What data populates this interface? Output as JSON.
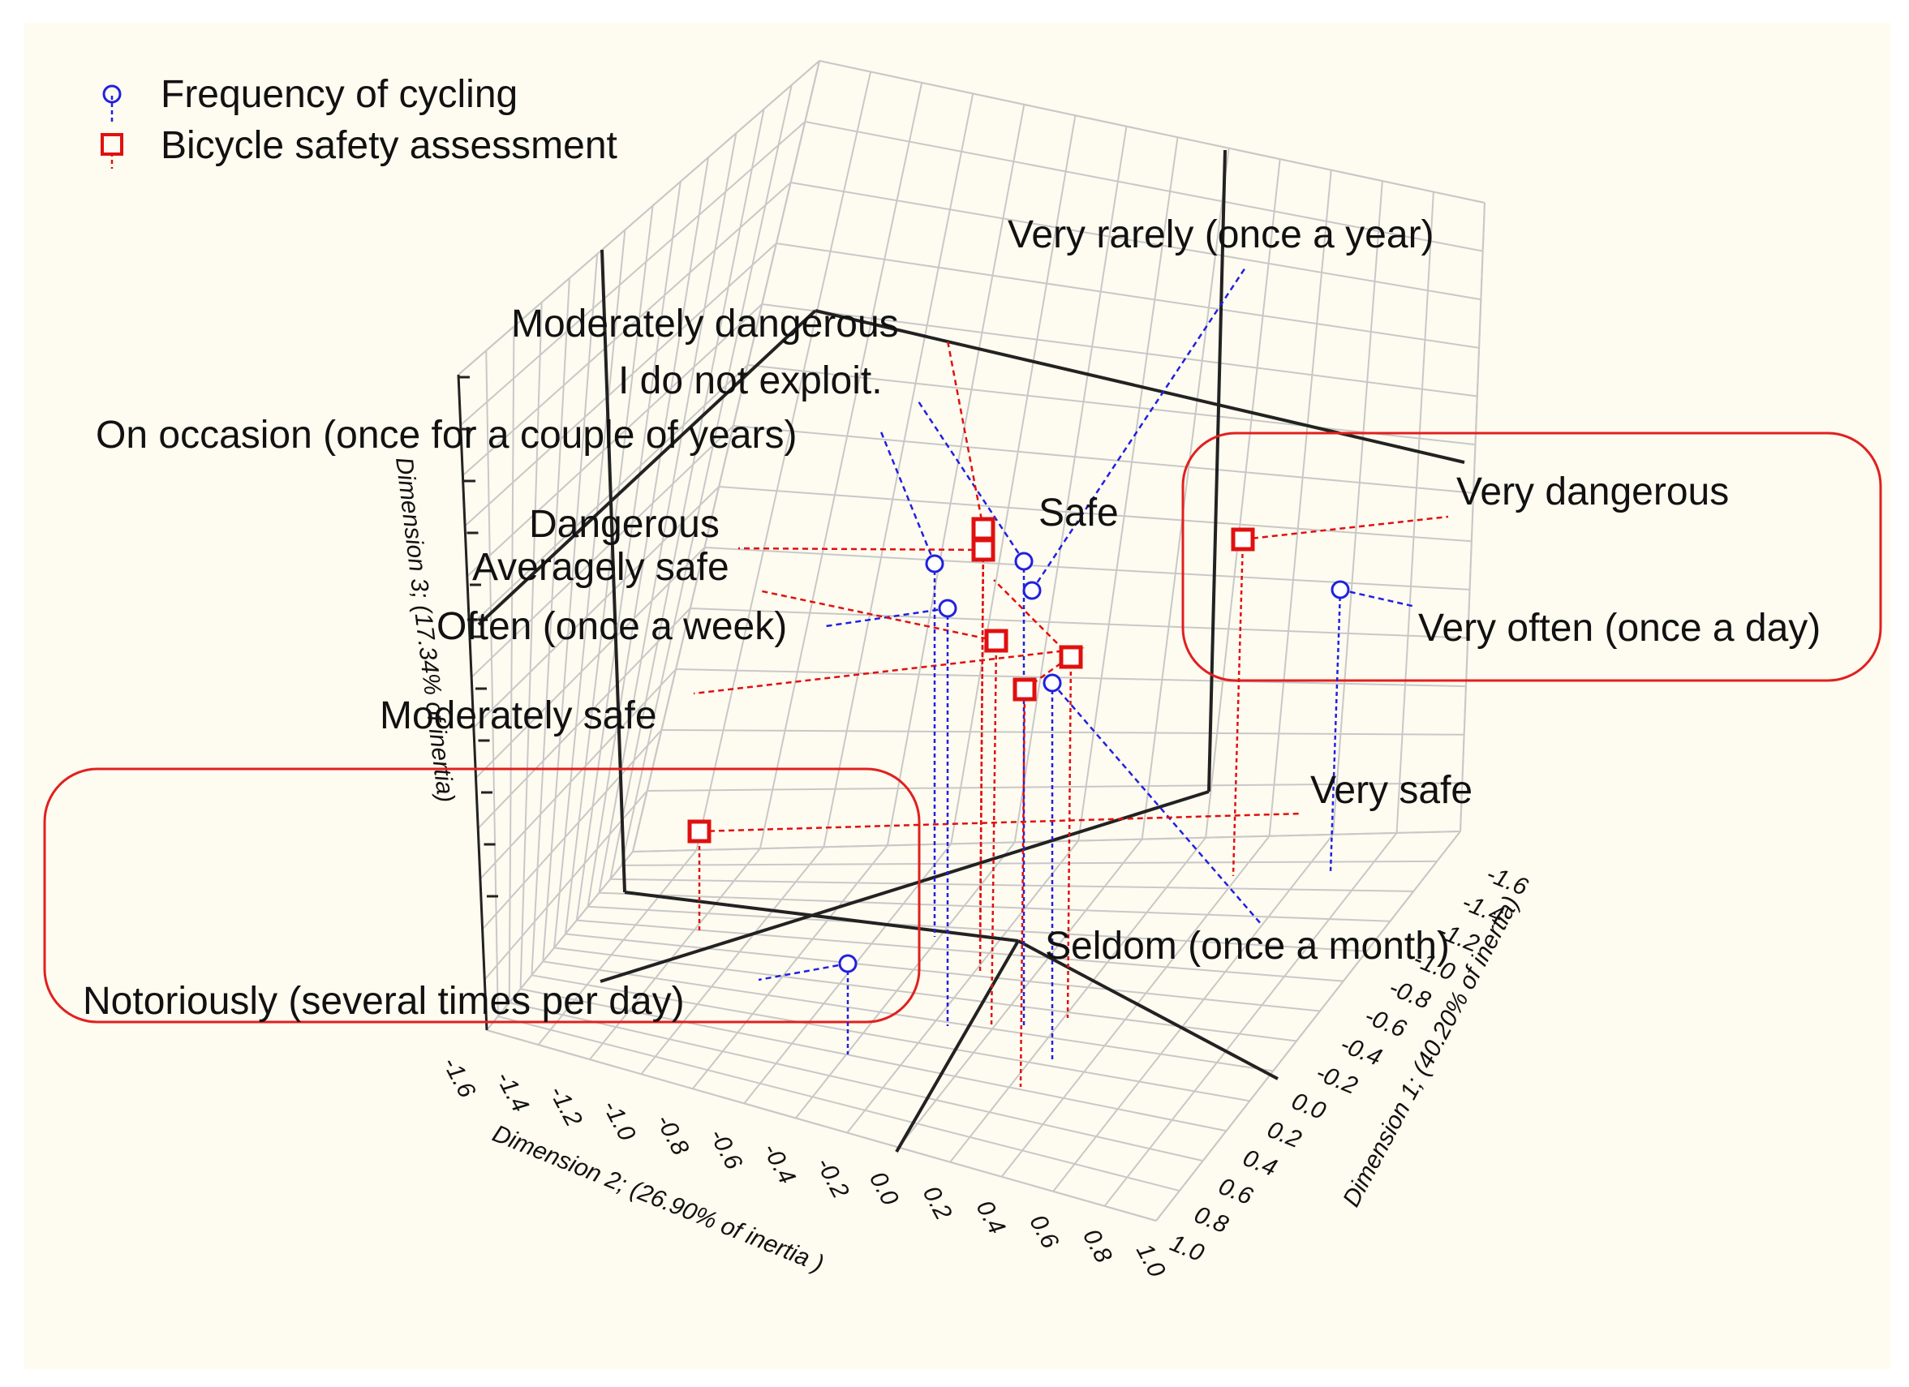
{
  "chart_data": {
    "type": "scatter",
    "title": "",
    "legend": {
      "placement": "top-left",
      "entries": [
        {
          "name": "Frequency of cycling",
          "marker": "circle",
          "color": "#2020e0"
        },
        {
          "name": "Bicycle safety assessment",
          "marker": "square",
          "color": "#e01010"
        }
      ]
    },
    "axes": {
      "x": {
        "label": "Dimension 2; (26.90% of inertia )",
        "ticks": [
          "-1.6",
          "-1.4",
          "-1.2",
          "-1.0",
          "-0.8",
          "-0.6",
          "-0.4",
          "-0.2",
          "0.0",
          "0.2",
          "0.4",
          "0.6",
          "0.8",
          "1.0"
        ],
        "range": [
          -1.6,
          1.0
        ]
      },
      "y": {
        "label": "Dimension 1; (40.20% of inertia)",
        "ticks": [
          "1.0",
          "0.8",
          "0.6",
          "0.4",
          "0.2",
          "0.0",
          "-0.2",
          "-0.4",
          "-0.6",
          "-0.8",
          "-1.0",
          "-1.2",
          "-1.4",
          "-1.6"
        ],
        "range": [
          -1.6,
          1.0
        ]
      },
      "z": {
        "label": "Dimension 3; (17.34% of inertia)",
        "range": [
          -1.6,
          1.0
        ]
      }
    },
    "series": [
      {
        "name": "Frequency of cycling",
        "color": "#2020e0",
        "points": [
          {
            "label": "Very rarely (once a year)"
          },
          {
            "label": "I do not exploit."
          },
          {
            "label": "On occasion (once for a couple of years)"
          },
          {
            "label": "Often (once a week)"
          },
          {
            "label": "Seldom (once a month)"
          },
          {
            "label": "Notoriously (several times per day)"
          },
          {
            "label": "Very often (once a day)"
          }
        ]
      },
      {
        "name": "Bicycle safety assessment",
        "color": "#e01010",
        "points": [
          {
            "label": "Moderately dangerous"
          },
          {
            "label": "Dangerous"
          },
          {
            "label": "Averagely safe"
          },
          {
            "label": "Safe"
          },
          {
            "label": "Moderately safe"
          },
          {
            "label": "Very safe"
          },
          {
            "label": "Very dangerous"
          }
        ]
      }
    ],
    "highlights": [
      "Very dangerous / Very often (once a day)",
      "Notoriously (several times per day)"
    ]
  }
}
